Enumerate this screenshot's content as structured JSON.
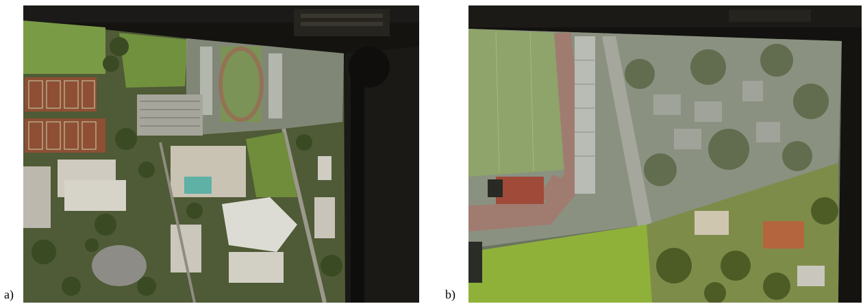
{
  "figure": {
    "panels": [
      {
        "label": "a)",
        "description_icon": "projected-aerial-campus-photo"
      },
      {
        "label": "b)",
        "description_icon": "projected-aerial-zoomed-photo"
      }
    ]
  }
}
